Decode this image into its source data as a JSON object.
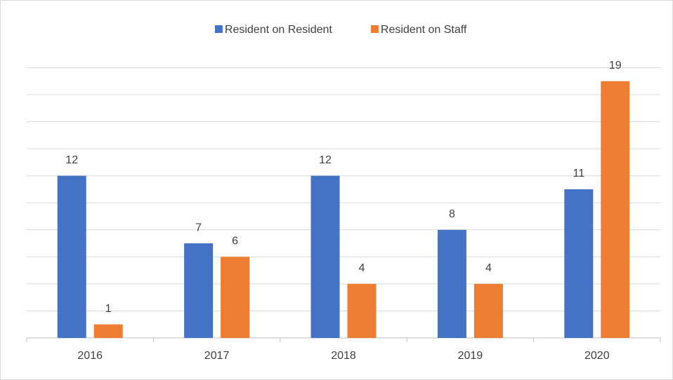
{
  "chart_data": {
    "type": "bar",
    "categories": [
      "2016",
      "2017",
      "2018",
      "2019",
      "2020"
    ],
    "series": [
      {
        "name": "Resident on Resident",
        "color": "#4472c4",
        "values": [
          12,
          7,
          12,
          8,
          11
        ]
      },
      {
        "name": "Resident on Staff",
        "color": "#ed7d31",
        "values": [
          1,
          6,
          4,
          4,
          19
        ]
      }
    ],
    "ylim": [
      0,
      20
    ],
    "yticks": [
      0,
      2,
      4,
      6,
      8,
      10,
      12,
      14,
      16,
      18,
      20
    ],
    "ytick_labels": false,
    "grid": true,
    "legend": "top",
    "data_labels": true
  }
}
